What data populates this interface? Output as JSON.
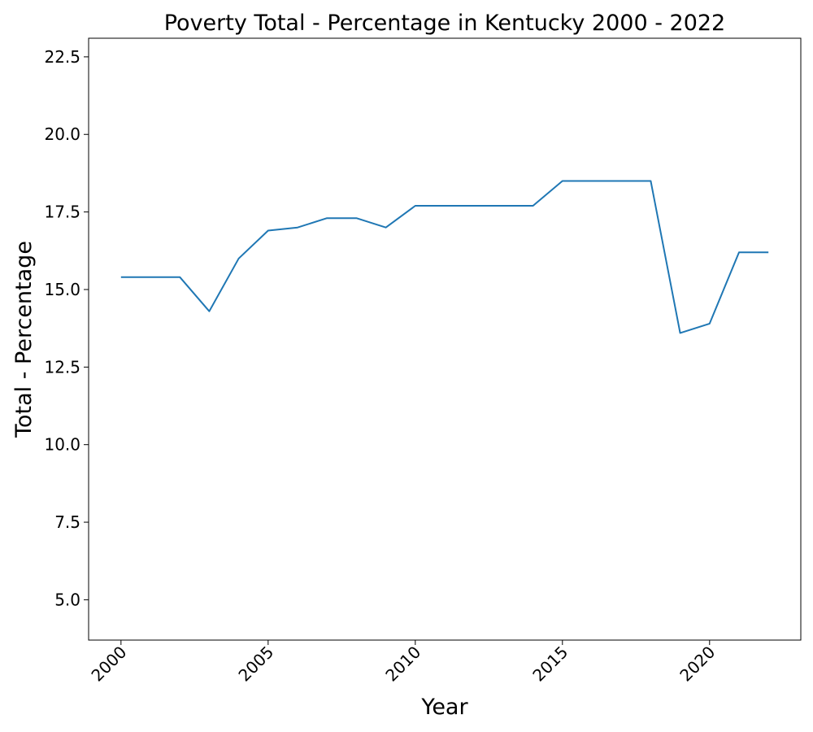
{
  "chart_data": {
    "type": "line",
    "title": "Poverty Total - Percentage in Kentucky 2000 - 2022",
    "xlabel": "Year",
    "ylabel": "Total - Percentage",
    "xlim": [
      1998.9,
      2023.1
    ],
    "ylim": [
      3.7,
      23.1
    ],
    "x_ticks": [
      2000,
      2005,
      2010,
      2015,
      2020
    ],
    "y_ticks": [
      5.0,
      7.5,
      10.0,
      12.5,
      15.0,
      17.5,
      20.0,
      22.5
    ],
    "grid": false,
    "series": [
      {
        "color": "#1f77b4",
        "x": [
          2000,
          2001,
          2002,
          2003,
          2004,
          2005,
          2006,
          2007,
          2008,
          2009,
          2010,
          2011,
          2012,
          2013,
          2014,
          2015,
          2016,
          2017,
          2018,
          2019,
          2020,
          2021,
          2022
        ],
        "values": [
          15.4,
          15.4,
          15.4,
          14.3,
          16.0,
          16.9,
          17.0,
          17.3,
          17.3,
          17.0,
          17.7,
          17.7,
          17.7,
          17.7,
          17.7,
          18.5,
          18.5,
          18.5,
          18.5,
          13.6,
          13.9,
          16.2,
          16.2
        ]
      }
    ]
  }
}
